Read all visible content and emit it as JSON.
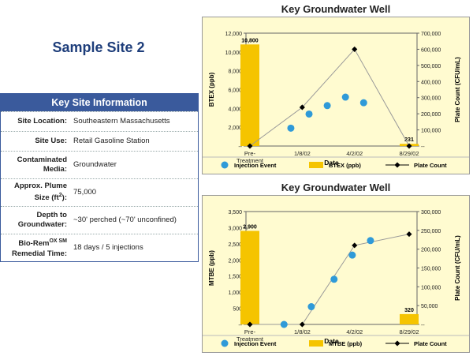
{
  "site": {
    "title": "Sample Site 2",
    "table_header": "Key Site Information",
    "rows": [
      {
        "label": "Site Location:",
        "value": "Southeastern Massachusetts"
      },
      {
        "label": "Site Use:",
        "value": "Retail Gasoline Station"
      },
      {
        "label": "Contaminated Media:",
        "value": "Groundwater"
      },
      {
        "label": "Approx. Plume Size (ft²):",
        "value": "75,000"
      },
      {
        "label": "Depth to Groundwater:",
        "value": "~30' perched (~70' unconfined)"
      },
      {
        "label": "Bio-Rem OX SM Remedial Time:",
        "value": "18 days / 5 injections"
      }
    ]
  },
  "colors": {
    "bar": "#f5c400",
    "dot": "#2f9ad8",
    "line": "#999999",
    "marker": "#000000",
    "plot_bg": "#fffbd0",
    "header": "#3a5a9c"
  },
  "chart_data": [
    {
      "type": "bar",
      "title": "Key Groundwater Well",
      "xlabel": "Date",
      "ylabel": "BTEX (ppb)",
      "y2label": "Plate Count (CFU/mL)",
      "ylim": [
        0,
        12000
      ],
      "y2lim": [
        0,
        700000
      ],
      "yticks": [
        "12,000",
        "10,000",
        "8,000",
        "6,000",
        "4,000",
        "2,000",
        "--"
      ],
      "y2ticks": [
        "700,000",
        "600,000",
        "500,000",
        "400,000",
        "300,000",
        "200,000",
        "100,000",
        "--"
      ],
      "xticks": [
        "Pre-\nTreatment",
        "1/8/02",
        "4/2/02",
        "8/29/02"
      ],
      "bars": [
        {
          "x": "Pre-Treatment",
          "value": 10800,
          "label": "10,800"
        },
        {
          "x": "8/29/02",
          "value": 231,
          "label": "231"
        }
      ],
      "injection_events": [
        {
          "t": 1.8,
          "value": 1900
        },
        {
          "t": 2.6,
          "value": 3400
        },
        {
          "t": 3.4,
          "value": 4300
        },
        {
          "t": 4.2,
          "value": 5200
        },
        {
          "t": 5.0,
          "value": 4600
        }
      ],
      "plate_count": [
        {
          "t": 0,
          "value": 0
        },
        {
          "t": 2.3,
          "value": 240000
        },
        {
          "t": 4.6,
          "value": 600000
        },
        {
          "t": 7.0,
          "value": 0
        }
      ],
      "legend": [
        "Injection Event",
        "BTEX (ppb)",
        "Plate Count"
      ]
    },
    {
      "type": "bar",
      "title": "Key Groundwater Well",
      "xlabel": "Date",
      "ylabel": "MTBE (ppb)",
      "y2label": "Plate Count (CFU/mL)",
      "ylim": [
        0,
        3500
      ],
      "y2lim": [
        0,
        300000
      ],
      "yticks": [
        "3,500",
        "3,000",
        "2,500",
        "2,000",
        "1,500",
        "1,000",
        "500",
        "--"
      ],
      "y2ticks": [
        "300,000",
        "250,000",
        "200,000",
        "150,000",
        "100,000",
        "50,000",
        "--"
      ],
      "xticks": [
        "Pre-\nTreatment",
        "1/8/02",
        "4/2/02",
        "8/29/02"
      ],
      "bars": [
        {
          "x": "Pre-Treatment",
          "value": 2900,
          "label": "2,900"
        },
        {
          "x": "8/29/02",
          "value": 320,
          "label": "320"
        }
      ],
      "injection_events": [
        {
          "t": 1.5,
          "value": 0
        },
        {
          "t": 2.7,
          "value": 550
        },
        {
          "t": 3.7,
          "value": 1400
        },
        {
          "t": 4.5,
          "value": 2150
        },
        {
          "t": 5.3,
          "value": 2600
        }
      ],
      "plate_count": [
        {
          "t": 0,
          "value": 0
        },
        {
          "t": 2.3,
          "value": 0
        },
        {
          "t": 4.6,
          "value": 210000
        },
        {
          "t": 7.0,
          "value": 240000
        }
      ],
      "legend": [
        "Injection Event",
        "MTBE (ppb)",
        "Plate Count"
      ]
    }
  ]
}
